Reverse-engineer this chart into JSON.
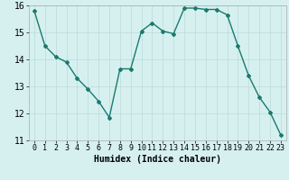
{
  "x": [
    0,
    1,
    2,
    3,
    4,
    5,
    6,
    7,
    8,
    9,
    10,
    11,
    12,
    13,
    14,
    15,
    16,
    17,
    18,
    19,
    20,
    21,
    22,
    23
  ],
  "y": [
    15.8,
    14.5,
    14.1,
    13.9,
    13.3,
    12.9,
    12.45,
    11.85,
    13.65,
    13.65,
    15.05,
    15.35,
    15.05,
    14.95,
    15.9,
    15.9,
    15.85,
    15.85,
    15.65,
    14.5,
    13.4,
    12.6,
    12.05,
    11.2
  ],
  "xlabel": "Humidex (Indice chaleur)",
  "ylim": [
    11,
    16
  ],
  "xlim": [
    -0.5,
    23.5
  ],
  "yticks": [
    11,
    12,
    13,
    14,
    15,
    16
  ],
  "xticks": [
    0,
    1,
    2,
    3,
    4,
    5,
    6,
    7,
    8,
    9,
    10,
    11,
    12,
    13,
    14,
    15,
    16,
    17,
    18,
    19,
    20,
    21,
    22,
    23
  ],
  "line_color": "#1a7a6e",
  "bg_color": "#d6f0f0",
  "grid_color": "#c0dede",
  "marker": "D",
  "marker_size": 2,
  "linewidth": 1.0,
  "xlabel_fontsize": 7,
  "tick_fontsize": 6
}
